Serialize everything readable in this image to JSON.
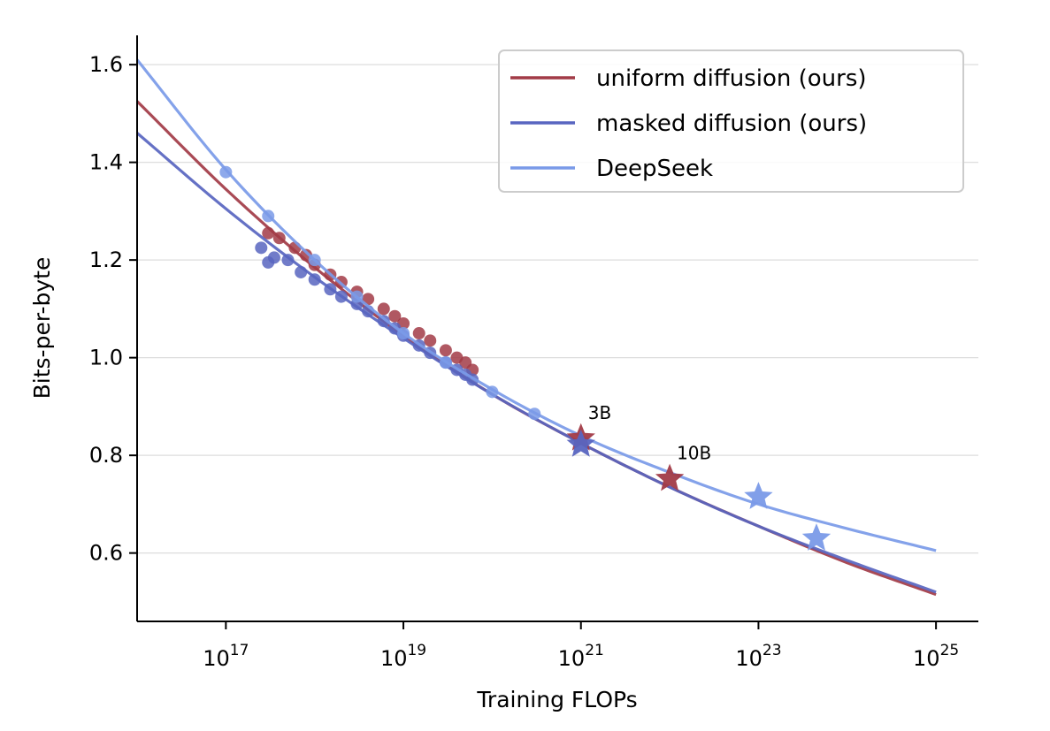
{
  "chart_data": {
    "type": "line",
    "xlabel": "Training FLOPs",
    "ylabel": "Bits-per-byte",
    "xscale": "log",
    "xlim": [
      1e+16,
      3e+25
    ],
    "ylim": [
      0.46,
      1.66
    ],
    "x_ticks": [
      {
        "value": 1e+17,
        "base": "10",
        "exp": "17"
      },
      {
        "value": 1e+19,
        "base": "10",
        "exp": "19"
      },
      {
        "value": 1e+21,
        "base": "10",
        "exp": "21"
      },
      {
        "value": 1e+23,
        "base": "10",
        "exp": "23"
      },
      {
        "value": 1e+25,
        "base": "10",
        "exp": "25"
      }
    ],
    "y_ticks": [
      {
        "value": 0.6,
        "label": "0.6"
      },
      {
        "value": 0.8,
        "label": "0.8"
      },
      {
        "value": 1.0,
        "label": "1.0"
      },
      {
        "value": 1.2,
        "label": "1.2"
      },
      {
        "value": 1.4,
        "label": "1.4"
      },
      {
        "value": 1.6,
        "label": "1.6"
      }
    ],
    "grid": "horizontal",
    "legend_position": "top-right",
    "series": [
      {
        "name": "uniform diffusion (ours)",
        "color": "#a23b47",
        "fit": {
          "x": [
            1e+16,
            1e+17,
            1e+18,
            1e+19,
            1e+20,
            1e+21,
            1e+22,
            1e+23,
            1e+24,
            1e+25
          ],
          "y": [
            1.525,
            1.345,
            1.185,
            1.045,
            0.925,
            0.825,
            0.735,
            0.655,
            0.58,
            0.515
          ]
        },
        "points": {
          "x": [
            3e+17,
            4e+17,
            6e+17,
            8e+17,
            1e+18,
            1.5e+18,
            2e+18,
            3e+18,
            4e+18,
            6e+18,
            8e+18,
            1e+19,
            1.5e+19,
            2e+19,
            3e+19,
            4e+19,
            5e+19,
            6e+19
          ],
          "y": [
            1.255,
            1.245,
            1.225,
            1.21,
            1.19,
            1.17,
            1.155,
            1.135,
            1.12,
            1.1,
            1.085,
            1.07,
            1.05,
            1.035,
            1.015,
            1.0,
            0.99,
            0.975
          ]
        },
        "stars": [
          {
            "x": 1e+21,
            "y": 0.835,
            "label": "3B"
          },
          {
            "x": 1e+22,
            "y": 0.752,
            "label": "10B"
          }
        ]
      },
      {
        "name": "masked diffusion (ours)",
        "color": "#5865c0",
        "fit": {
          "x": [
            1e+16,
            1e+17,
            1e+18,
            1e+19,
            1e+20,
            1e+21,
            1e+22,
            1e+23,
            1e+24,
            1e+25
          ],
          "y": [
            1.46,
            1.305,
            1.165,
            1.04,
            0.925,
            0.825,
            0.735,
            0.655,
            0.585,
            0.52
          ]
        },
        "points": {
          "x": [
            2.5e+17,
            3e+17,
            3.5e+17,
            5e+17,
            7e+17,
            1e+18,
            1.5e+18,
            2e+18,
            3e+18,
            4e+18,
            6e+18,
            8e+18,
            1e+19,
            1.5e+19,
            2e+19,
            3e+19,
            4e+19,
            5e+19,
            6e+19
          ],
          "y": [
            1.225,
            1.195,
            1.205,
            1.2,
            1.175,
            1.16,
            1.14,
            1.125,
            1.11,
            1.095,
            1.075,
            1.06,
            1.045,
            1.025,
            1.01,
            0.99,
            0.975,
            0.965,
            0.955
          ]
        },
        "stars": [
          {
            "x": 1e+21,
            "y": 0.822,
            "label": ""
          }
        ]
      },
      {
        "name": "DeepSeek",
        "color": "#7a9ae8",
        "fit": {
          "x": [
            1e+16,
            1e+17,
            1e+18,
            1e+19,
            1e+20,
            1e+21,
            1e+22,
            1e+23,
            1e+24,
            1e+25
          ],
          "y": [
            1.61,
            1.385,
            1.2,
            1.05,
            0.935,
            0.84,
            0.765,
            0.7,
            0.65,
            0.605
          ]
        },
        "points": {
          "x": [
            1e+17,
            3e+17,
            1e+18,
            3e+18,
            1e+19,
            3e+19,
            1e+20,
            3e+20
          ],
          "y": [
            1.38,
            1.29,
            1.2,
            1.125,
            1.05,
            0.99,
            0.93,
            0.885
          ]
        },
        "stars": [
          {
            "x": 1e+23,
            "y": 0.715,
            "label": ""
          },
          {
            "x": 4.5e+23,
            "y": 0.63,
            "label": ""
          }
        ]
      }
    ]
  }
}
